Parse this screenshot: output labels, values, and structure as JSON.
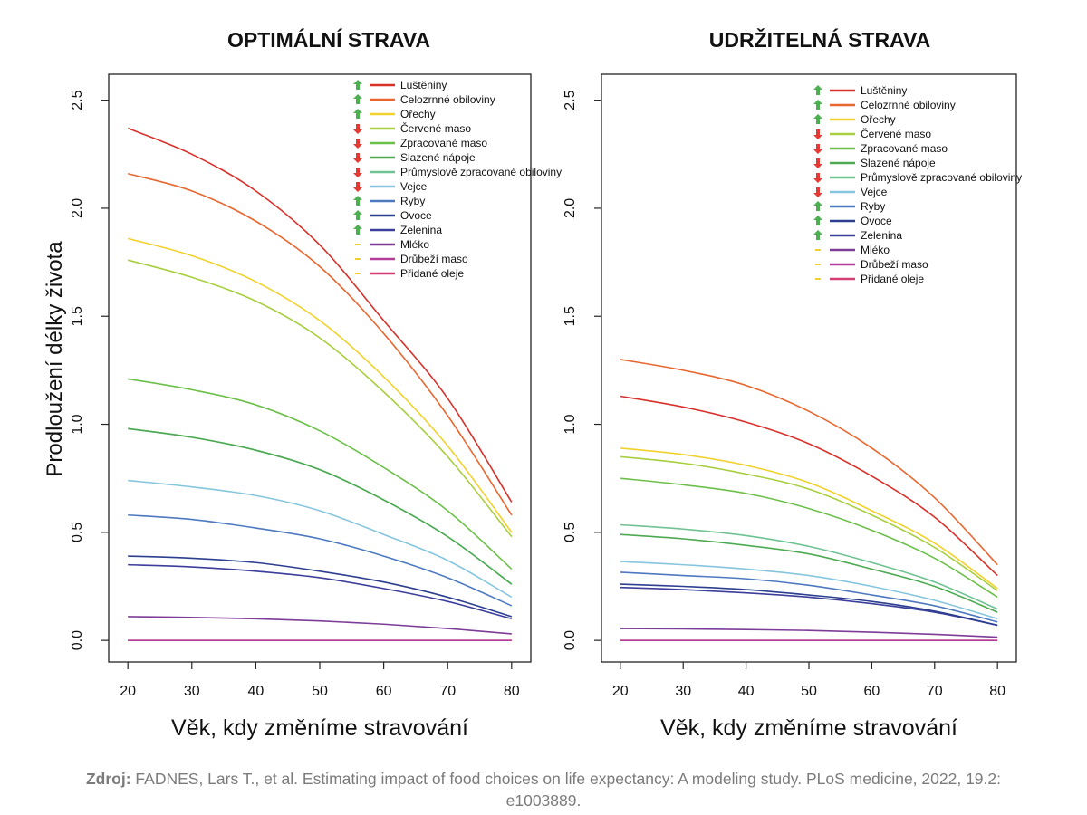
{
  "chart_data": [
    {
      "type": "line",
      "title": "OPTIMÁLNÍ STRAVA",
      "xlabel": "Věk, kdy změníme stravování",
      "ylabel": "Prodloužení délky života",
      "xlim": [
        17,
        83
      ],
      "ylim": [
        -0.1,
        2.62
      ],
      "xticks": [
        20,
        30,
        40,
        50,
        60,
        70,
        80
      ],
      "yticks": [
        0.0,
        0.5,
        1.0,
        1.5,
        2.0,
        2.5
      ],
      "ytick_labels": [
        "0.0",
        "0.5",
        "1.0",
        "1.5",
        "2.0",
        "2.5"
      ],
      "grid": false,
      "legend_position": "top-right",
      "x": [
        20,
        30,
        40,
        50,
        60,
        70,
        80
      ],
      "series": [
        {
          "name": "Luštěniny",
          "color": "#d7312a",
          "trend": "up",
          "values": [
            2.37,
            2.25,
            2.08,
            1.83,
            1.48,
            1.12,
            0.64
          ]
        },
        {
          "name": "Celozrnné obiloviny",
          "color": "#e8662f",
          "trend": "up",
          "values": [
            2.16,
            2.08,
            1.94,
            1.73,
            1.42,
            1.04,
            0.58
          ]
        },
        {
          "name": "Ořechy",
          "color": "#f2d12c",
          "trend": "up",
          "values": [
            1.86,
            1.78,
            1.66,
            1.48,
            1.22,
            0.9,
            0.5
          ]
        },
        {
          "name": "Červené maso",
          "color": "#a8cf3f",
          "trend": "down",
          "values": [
            1.76,
            1.68,
            1.57,
            1.4,
            1.15,
            0.85,
            0.48
          ]
        },
        {
          "name": "Zpracované maso",
          "color": "#6cc04a",
          "trend": "down",
          "values": [
            1.21,
            1.16,
            1.09,
            0.97,
            0.8,
            0.6,
            0.33
          ]
        },
        {
          "name": "Slazené nápoje",
          "color": "#4daa52",
          "trend": "down",
          "values": [
            0.98,
            0.94,
            0.88,
            0.79,
            0.65,
            0.48,
            0.26
          ]
        },
        {
          "name": "Průmyslově zpracované obiloviny",
          "color": "#6fc292",
          "trend": "down",
          "values": [
            0.98,
            0.94,
            0.88,
            0.79,
            0.65,
            0.48,
            0.26
          ]
        },
        {
          "name": "Vejce",
          "color": "#86c5de",
          "trend": "down",
          "values": [
            0.74,
            0.71,
            0.67,
            0.6,
            0.49,
            0.37,
            0.2
          ]
        },
        {
          "name": "Ryby",
          "color": "#4d79c1",
          "trend": "up",
          "values": [
            0.58,
            0.56,
            0.52,
            0.47,
            0.39,
            0.29,
            0.16
          ]
        },
        {
          "name": "Ovoce",
          "color": "#2c3e8f",
          "trend": "up",
          "values": [
            0.39,
            0.38,
            0.36,
            0.32,
            0.27,
            0.2,
            0.11
          ]
        },
        {
          "name": "Zelenina",
          "color": "#3b3e9a",
          "trend": "up",
          "values": [
            0.35,
            0.34,
            0.32,
            0.29,
            0.24,
            0.18,
            0.1
          ]
        },
        {
          "name": "Mléko",
          "color": "#7d3c98",
          "trend": "neutral",
          "values": [
            0.11,
            0.106,
            0.1,
            0.09,
            0.075,
            0.055,
            0.03
          ]
        },
        {
          "name": "Drůbeží maso",
          "color": "#b43c9a",
          "trend": "neutral",
          "values": [
            0.0,
            0.0,
            0.0,
            0.0,
            0.0,
            0.0,
            0.0
          ]
        },
        {
          "name": "Přidané oleje",
          "color": "#d43e72",
          "trend": "neutral",
          "values": [
            0.0,
            0.0,
            0.0,
            0.0,
            0.0,
            0.0,
            0.0
          ]
        }
      ]
    },
    {
      "type": "line",
      "title": "UDRŽITELNÁ STRAVA",
      "xlabel": "Věk, kdy změníme stravování",
      "ylabel": "",
      "xlim": [
        17,
        83
      ],
      "ylim": [
        -0.1,
        2.62
      ],
      "xticks": [
        20,
        30,
        40,
        50,
        60,
        70,
        80
      ],
      "yticks": [
        0.0,
        0.5,
        1.0,
        1.5,
        2.0,
        2.5
      ],
      "ytick_labels": [
        "0.0",
        "0.5",
        "1.0",
        "1.5",
        "2.0",
        "2.5"
      ],
      "grid": false,
      "legend_position": "top-right",
      "x": [
        20,
        30,
        40,
        50,
        60,
        70,
        80
      ],
      "series": [
        {
          "name": "Luštěniny",
          "color": "#d7312a",
          "trend": "up",
          "values": [
            1.13,
            1.08,
            1.01,
            0.91,
            0.76,
            0.57,
            0.3
          ]
        },
        {
          "name": "Celozrnné obiloviny",
          "color": "#e8662f",
          "trend": "up",
          "values": [
            1.3,
            1.25,
            1.18,
            1.06,
            0.89,
            0.66,
            0.35
          ]
        },
        {
          "name": "Ořechy",
          "color": "#f2d12c",
          "trend": "up",
          "values": [
            0.89,
            0.86,
            0.81,
            0.73,
            0.6,
            0.45,
            0.24
          ]
        },
        {
          "name": "Červené maso",
          "color": "#a8cf3f",
          "trend": "down",
          "values": [
            0.85,
            0.82,
            0.77,
            0.7,
            0.58,
            0.43,
            0.23
          ]
        },
        {
          "name": "Zpracované maso",
          "color": "#6cc04a",
          "trend": "down",
          "values": [
            0.75,
            0.72,
            0.68,
            0.61,
            0.51,
            0.38,
            0.2
          ]
        },
        {
          "name": "Slazené nápoje",
          "color": "#4daa52",
          "trend": "down",
          "values": [
            0.49,
            0.47,
            0.44,
            0.4,
            0.33,
            0.25,
            0.13
          ]
        },
        {
          "name": "Průmyslově zpracované obiloviny",
          "color": "#6fc292",
          "trend": "down",
          "values": [
            0.535,
            0.515,
            0.485,
            0.435,
            0.36,
            0.27,
            0.145
          ]
        },
        {
          "name": "Vejce",
          "color": "#86c5de",
          "trend": "down",
          "values": [
            0.365,
            0.35,
            0.33,
            0.3,
            0.25,
            0.185,
            0.1
          ]
        },
        {
          "name": "Ryby",
          "color": "#4d79c1",
          "trend": "up",
          "values": [
            0.315,
            0.3,
            0.285,
            0.255,
            0.21,
            0.16,
            0.085
          ]
        },
        {
          "name": "Ovoce",
          "color": "#2c3e8f",
          "trend": "up",
          "values": [
            0.26,
            0.25,
            0.235,
            0.21,
            0.18,
            0.135,
            0.07
          ]
        },
        {
          "name": "Zelenina",
          "color": "#3b3e9a",
          "trend": "up",
          "values": [
            0.245,
            0.235,
            0.22,
            0.2,
            0.17,
            0.13,
            0.07
          ]
        },
        {
          "name": "Mléko",
          "color": "#7d3c98",
          "trend": "neutral",
          "values": [
            0.055,
            0.053,
            0.05,
            0.046,
            0.038,
            0.028,
            0.015
          ]
        },
        {
          "name": "Drůbeží maso",
          "color": "#b43c9a",
          "trend": "neutral",
          "values": [
            0.0,
            0.0,
            0.0,
            0.0,
            0.0,
            0.0,
            0.0
          ]
        },
        {
          "name": "Přidané oleje",
          "color": "#d43e72",
          "trend": "neutral",
          "values": [
            0.0,
            0.0,
            0.0,
            0.0,
            0.0,
            0.0,
            0.0
          ]
        }
      ]
    }
  ],
  "indicator_colors": {
    "up": "#4caf50",
    "down": "#e53935",
    "neutral": "#f2d12c"
  },
  "caption": {
    "bold": "Zdroj:",
    "text": " FADNES, Lars T., et al. Estimating impact of food choices on life expectancy: A modeling study. PLoS medicine, 2022, 19.2: e1003889."
  }
}
